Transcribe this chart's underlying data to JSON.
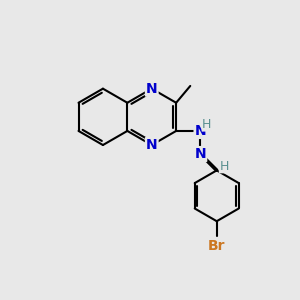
{
  "background_color": "#e8e8e8",
  "bond_color": "#000000",
  "N_color": "#0000cc",
  "Br_color": "#cc7722",
  "H_color": "#5a9090",
  "line_width": 1.5,
  "font_size_atom": 10,
  "font_size_H": 9,
  "font_size_br": 10,
  "xlim": [
    0,
    10
  ],
  "ylim": [
    0,
    10
  ]
}
